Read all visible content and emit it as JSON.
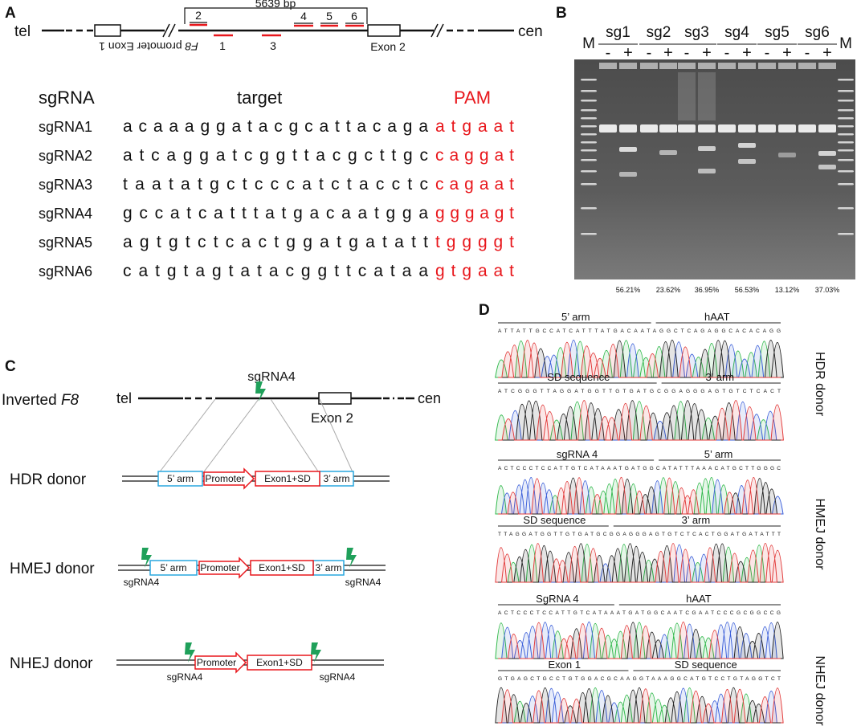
{
  "panel_a": {
    "label": "A",
    "span": "5639 bp",
    "tel": "tel",
    "cen": "cen",
    "sites": [
      "1",
      "2",
      "3",
      "4",
      "5",
      "6"
    ],
    "gene": "F8",
    "exon1": "promoter Exon 1",
    "exon2": "Exon 2",
    "table": {
      "header": [
        "sgRNA",
        "target",
        "PAM"
      ],
      "rows": [
        {
          "name": "sgRNA1",
          "target": "acaaaggatacgcattacaga",
          "pam": "atgaat"
        },
        {
          "name": "sgRNA2",
          "target": "atcaggatcggttacgcttgc",
          "pam": "caggat"
        },
        {
          "name": "sgRNA3",
          "target": "taatatgctcccatctacctc",
          "pam": "cagaat"
        },
        {
          "name": "sgRNA4",
          "target": "gccatcatttatgacaatgga",
          "pam": "gggagt"
        },
        {
          "name": "sgRNA5",
          "target": "agtgtctcactggatgatatt",
          "pam": "tggggt"
        },
        {
          "name": "sgRNA6",
          "target": "catgtagtatacggttcataa",
          "pam": "gtgaat"
        }
      ]
    }
  },
  "panel_b": {
    "label": "B",
    "marker": "M",
    "lanes": [
      "sg1",
      "sg2",
      "sg3",
      "sg4",
      "sg5",
      "sg6"
    ],
    "minus": "-",
    "plus": "+",
    "efficiency": [
      "56.21%",
      "23.62%",
      "36.95%",
      "56.53%",
      "13.12%",
      "37.03%"
    ]
  },
  "panel_c": {
    "label": "C",
    "sgrna": "sgRNA4",
    "locus": "Inverted",
    "gene": "F8",
    "tel": "tel",
    "exon2": "Exon 2",
    "cen": "cen",
    "arm5": "5’ arm",
    "promoter": "Promoter",
    "exon1_sd": "Exon1+SD",
    "arm3": "3’ arm",
    "donors": [
      "HDR donor",
      "HMEJ donor",
      "NHEJ donor"
    ]
  },
  "panel_d": {
    "label": "D",
    "donors": [
      "HDR donor",
      "HMEJ donor",
      "NHEJ donor"
    ],
    "traces": [
      {
        "segments": [
          "5’ arm",
          "hAAT"
        ],
        "sequence": "ATTATTGCCATCATTTATGACAATAGGCTCAGAGGCACACAGG"
      },
      {
        "segments": [
          "SD sequence",
          "3’ arm"
        ],
        "sequence": "ATCGGGTTAGGATGGTTGTGATGCGGAGGGAGTGTCTCACT"
      },
      {
        "segments": [
          "sgRNA 4",
          "5’ arm"
        ],
        "sequence": "ACTCCCTCCATTGTCATAAATGATGGCATATTTAAACATGCTTGGGC"
      },
      {
        "segments": [
          "SD sequence",
          "3’ arm"
        ],
        "sequence": "TTAGGATGGTTGTGATGCGGAGGGAGTGTCTCACTGGATGATATTT"
      },
      {
        "segments": [
          "SgRNA 4",
          "hAAT"
        ],
        "sequence": "ACTCCCTCCATTGTCATAAATGATGGCAATCGAATCCCGCGGCCG"
      },
      {
        "segments": [
          "Exon 1",
          "SD sequence"
        ],
        "sequence": "GTGAGCTGCCTGTGGACGCAAGGTAAAGGCATGTCCTGTAGGTCT"
      }
    ]
  }
}
